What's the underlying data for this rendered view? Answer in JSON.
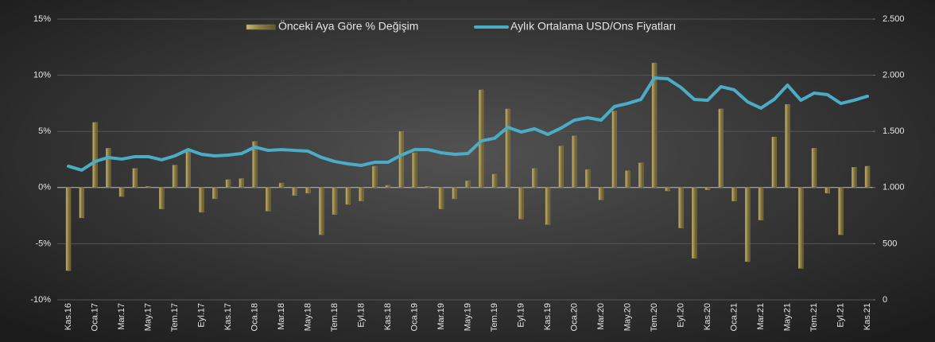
{
  "chart_data": {
    "type": "bar-line",
    "categories": [
      "Kas.16",
      null,
      "Oca.17",
      null,
      "Mar.17",
      null,
      "May.17",
      null,
      "Tem.17",
      null,
      "Eyl.17",
      null,
      "Kas.17",
      null,
      "Oca.18",
      null,
      "Mar.18",
      null,
      "May.18",
      null,
      "Tem.18",
      null,
      "Eyl.18",
      null,
      "Kas.18",
      null,
      "Oca.19",
      null,
      "Mar.19",
      null,
      "May.19",
      null,
      "Tem.19",
      null,
      "Eyl.19",
      null,
      "Kas.19",
      null,
      "Oca.20",
      null,
      "Mar.20",
      null,
      "May.20",
      null,
      "Tem.20",
      null,
      "Eyl.20",
      null,
      "Kas.20",
      null,
      "Oca.21",
      null,
      "Mar.21",
      null,
      "May.21",
      null,
      "Tem.21",
      null,
      "Eyl.21",
      null,
      "Kas.21"
    ],
    "series": [
      {
        "name": "Önceki Aya Göre % Değişim",
        "type": "bar",
        "color": "#8c7e45",
        "values": [
          -7.4,
          -2.7,
          5.8,
          3.5,
          -0.8,
          1.7,
          0.1,
          -1.9,
          2.0,
          3.4,
          -2.2,
          -1.0,
          0.7,
          0.8,
          4.1,
          -2.1,
          0.4,
          -0.7,
          -0.5,
          -4.2,
          -2.4,
          -1.5,
          -1.2,
          1.9,
          0.2,
          5.0,
          3.1,
          0.1,
          -1.9,
          -1.0,
          0.6,
          8.7,
          1.2,
          7.0,
          -2.8,
          1.7,
          -3.3,
          3.7,
          4.6,
          1.6,
          -1.1,
          6.8,
          1.5,
          2.2,
          11.1,
          -0.3,
          -3.6,
          -6.3,
          -0.2,
          7.0,
          -1.2,
          -6.6,
          -2.9,
          4.5,
          7.4,
          -7.2,
          3.5,
          -0.5,
          -4.2,
          1.8,
          1.9
        ]
      },
      {
        "name": "Aylık Ortalama USD/Ons Fiyatları",
        "type": "line",
        "axis": "y2",
        "color": "#4bacc6",
        "values": [
          1190,
          1155,
          1232,
          1268,
          1253,
          1275,
          1275,
          1247,
          1282,
          1338,
          1296,
          1282,
          1289,
          1303,
          1360,
          1331,
          1338,
          1331,
          1324,
          1268,
          1232,
          1211,
          1197,
          1225,
          1225,
          1289,
          1338,
          1338,
          1310,
          1296,
          1303,
          1416,
          1438,
          1537,
          1494,
          1523,
          1473,
          1530,
          1600,
          1622,
          1600,
          1721,
          1749,
          1785,
          1976,
          1969,
          1891,
          1785,
          1777,
          1898,
          1870,
          1763,
          1707,
          1785,
          1912,
          1777,
          1841,
          1827,
          1749,
          1777,
          1813
        ]
      }
    ],
    "ylim": [
      -10,
      15
    ],
    "yticks": [
      {
        "value": -10,
        "label": "-10%"
      },
      {
        "value": -5,
        "label": "-5%"
      },
      {
        "value": 0,
        "label": "0%"
      },
      {
        "value": 5,
        "label": "5%"
      },
      {
        "value": 10,
        "label": "10%"
      },
      {
        "value": 15,
        "label": "15%"
      }
    ],
    "y2lim": [
      0,
      2500
    ],
    "y2ticks": [
      0,
      {
        "value": 500,
        "label": "500"
      },
      {
        "value": 1000,
        "label": "1.000"
      },
      {
        "value": 1500,
        "label": "1.500"
      },
      {
        "value": 2000,
        "label": "2.000"
      },
      {
        "value": 2500,
        "label": "2.500"
      }
    ],
    "grid": true,
    "legend": "top"
  }
}
